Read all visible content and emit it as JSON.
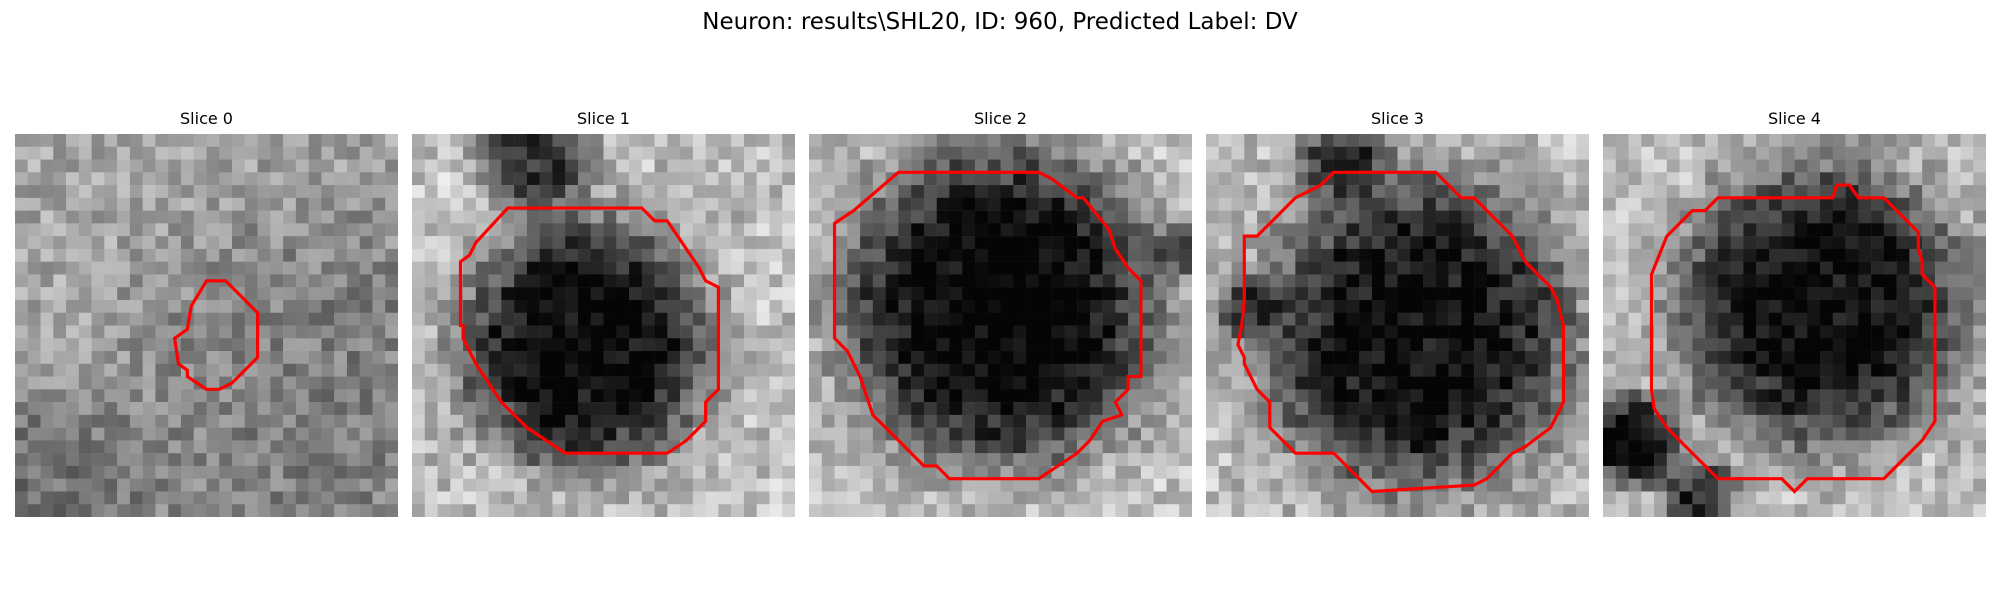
{
  "figure": {
    "title": "Neuron: results\\SHL20, ID: 960, Predicted Label: DV",
    "contour_color": "#ff0000",
    "panels": [
      {
        "title": "Slice 0",
        "shape": "small",
        "blobs": [
          [
            0.05,
            0.95,
            0.3,
            0.2
          ],
          [
            0.8,
            0.7,
            0.55,
            0.15
          ]
        ],
        "dark_bias": 0.15,
        "seed": 11
      },
      {
        "title": "Slice 1",
        "shape": "cell",
        "blobs": [
          [
            0.45,
            0.55,
            0.33,
            0.75
          ],
          [
            0.32,
            0.05,
            0.15,
            0.55
          ]
        ],
        "dark_bias": 0.05,
        "seed": 23
      },
      {
        "title": "Slice 2",
        "shape": "cell",
        "blobs": [
          [
            0.5,
            0.45,
            0.42,
            0.78
          ],
          [
            0.98,
            0.3,
            0.07,
            0.35
          ]
        ],
        "dark_bias": 0.05,
        "seed": 37
      },
      {
        "title": "Slice 3",
        "shape": "cell",
        "blobs": [
          [
            0.55,
            0.52,
            0.42,
            0.72
          ],
          [
            0.35,
            0.05,
            0.12,
            0.45
          ],
          [
            0.1,
            0.45,
            0.08,
            0.4
          ]
        ],
        "dark_bias": 0.05,
        "seed": 41
      },
      {
        "title": "Slice 4",
        "shape": "cell",
        "blobs": [
          [
            0.57,
            0.45,
            0.38,
            0.72
          ],
          [
            0.08,
            0.8,
            0.12,
            0.75
          ],
          [
            0.25,
            0.95,
            0.1,
            0.55
          ]
        ],
        "dark_bias": 0.05,
        "seed": 53
      }
    ]
  }
}
